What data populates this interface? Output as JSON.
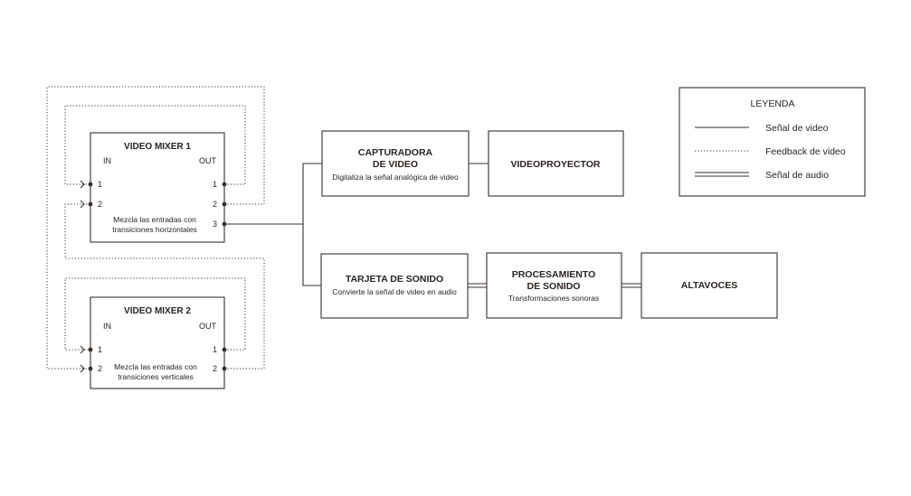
{
  "mixer1": {
    "title": "VIDEO MIXER 1",
    "in_label": "IN",
    "out_label": "OUT",
    "in_ports": [
      "1",
      "2"
    ],
    "out_ports": [
      "1",
      "2",
      "3"
    ],
    "desc_line1": "Mezcla las entradas con",
    "desc_line2": "transiciones  horizontales"
  },
  "mixer2": {
    "title": "VIDEO MIXER 2",
    "in_label": "IN",
    "out_label": "OUT",
    "in_ports": [
      "1",
      "2"
    ],
    "out_ports": [
      "1",
      "2"
    ],
    "desc_line1": "Mezcla las entradas con",
    "desc_line2": "transiciones  verticales"
  },
  "capture": {
    "title_line1": "CAPTURADORA",
    "title_line2": "DE VIDEO",
    "desc": "Digitaliza la señal analógica de video"
  },
  "projector": {
    "title": "VIDEOPROYECTOR"
  },
  "soundcard": {
    "title": "TARJETA DE SONIDO",
    "desc": "Convierte la señal de video en audio"
  },
  "processing": {
    "title_line1": "PROCESAMIENTO",
    "title_line2": "DE SONIDO",
    "desc": "Transformaciones sonoras"
  },
  "speakers": {
    "title": "ALTAVOCES"
  },
  "legend": {
    "title": "LEYENDA",
    "items": [
      {
        "label": "Señal de video",
        "style": "solid"
      },
      {
        "label": "Feedback de video",
        "style": "dotted"
      },
      {
        "label": "Señal de audio",
        "style": "double"
      }
    ]
  },
  "colors": {
    "line": "#3a302c",
    "text": "#2b2420",
    "background": "#ffffff"
  }
}
